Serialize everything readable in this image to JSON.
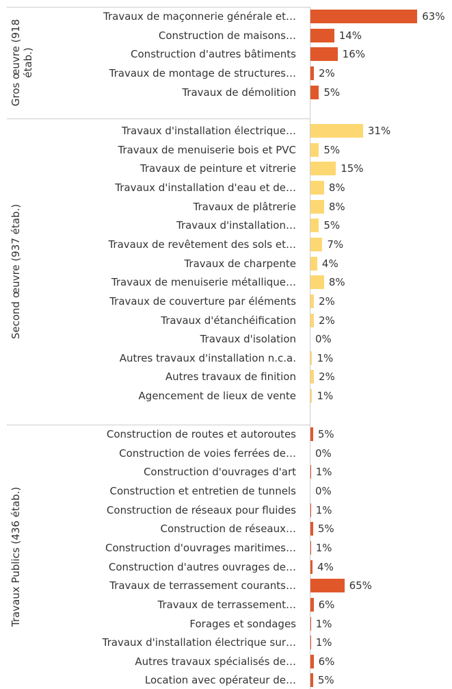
{
  "chart_data": {
    "type": "bar",
    "groups": [
      {
        "name": "Gros œuvre (918 étab.)",
        "color": "#e0582a",
        "xlim": [
          0,
          100
        ],
        "categories": [
          "Travaux de maçonnerie générale et…",
          "Construction de maisons…",
          "Construction d'autres bâtiments",
          "Travaux de montage de structures…",
          "Travaux de démolition"
        ],
        "values": [
          63,
          14,
          16,
          2,
          5
        ],
        "value_labels": [
          "63%",
          "14%",
          "16%",
          "2%",
          "5%"
        ]
      },
      {
        "name": "Second œuvre (937 étab.)",
        "color": "#fdd872",
        "xlim": [
          0,
          100
        ],
        "categories": [
          "Travaux d'installation électrique…",
          "Travaux de menuiserie bois et PVC",
          "Travaux de peinture et vitrerie",
          "Travaux d'installation d'eau et de…",
          "Travaux de plâtrerie",
          "Travaux d'installation…",
          "Travaux de revêtement des sols et…",
          "Travaux de charpente",
          "Travaux de menuiserie métallique…",
          "Travaux de couverture par éléments",
          "Travaux d'étanchéification",
          "Travaux d'isolation",
          "Autres travaux d'installation n.c.a.",
          "Autres travaux de finition",
          "Agencement de lieux de vente"
        ],
        "values": [
          31,
          5,
          15,
          8,
          8,
          5,
          7,
          4,
          8,
          2,
          2,
          0,
          1,
          2,
          1
        ],
        "value_labels": [
          "31%",
          "5%",
          "15%",
          "8%",
          "8%",
          "5%",
          "7%",
          "4%",
          "8%",
          "2%",
          "2%",
          "0%",
          "1%",
          "2%",
          "1%"
        ]
      },
      {
        "name": "Travaux Publics (436 étab.)",
        "color": "#e0582a",
        "xlim": [
          0,
          325
        ],
        "categories": [
          "Construction de routes et autoroutes",
          "Construction de voies ferrées de…",
          "Construction d'ouvrages d'art",
          "Construction et entretien de tunnels",
          "Construction de réseaux pour fluides",
          "Construction de réseaux…",
          "Construction d'ouvrages maritimes…",
          "Construction d'autres ouvrages de…",
          "Travaux de terrassement courants…",
          "Travaux de terrassement…",
          "Forages et sondages",
          "Travaux d'installation électrique sur…",
          "Autres travaux spécialisés de…",
          "Location avec opérateur de…"
        ],
        "values": [
          5,
          0,
          1,
          0,
          1,
          5,
          1,
          4,
          65,
          6,
          1,
          1,
          6,
          5
        ],
        "value_labels": [
          "5%",
          "0%",
          "1%",
          "0%",
          "1%",
          "5%",
          "1%",
          "4%",
          "65%",
          "6%",
          "1%",
          "1%",
          "6%",
          "5%"
        ]
      }
    ]
  }
}
